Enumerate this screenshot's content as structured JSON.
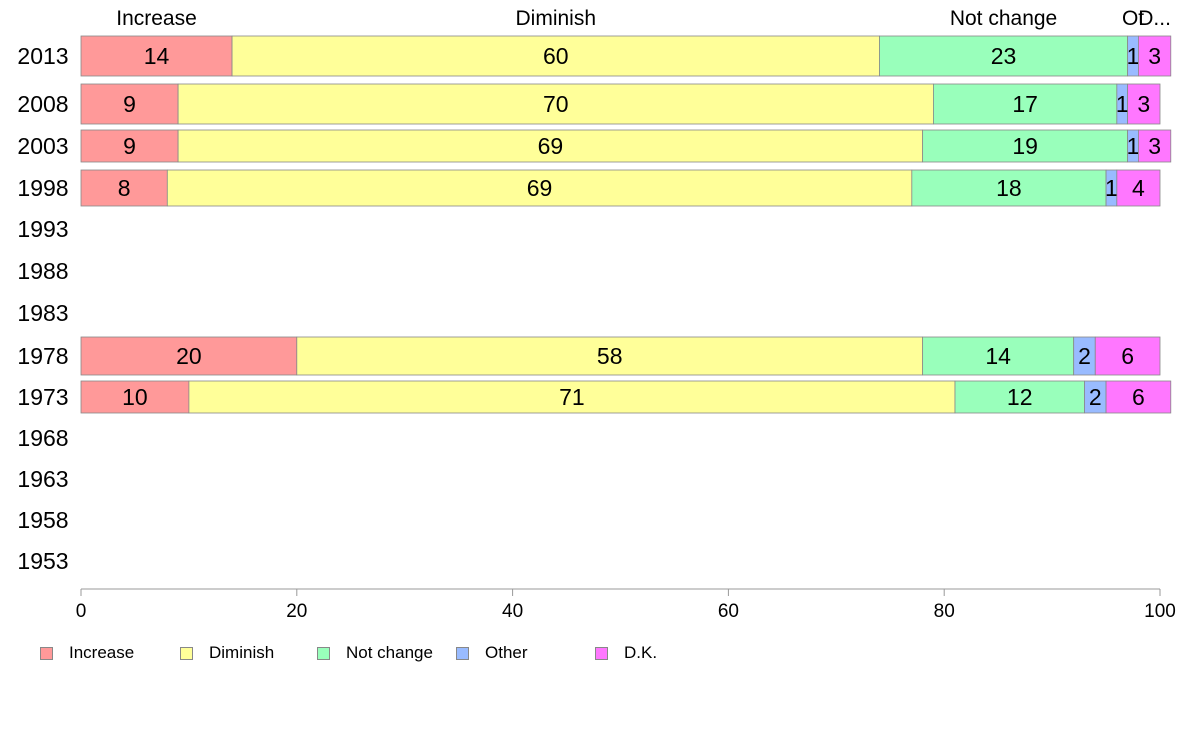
{
  "chart_data": {
    "type": "bar",
    "orientation": "horizontal",
    "stacked": true,
    "categories": [
      "2013",
      "2008",
      "2003",
      "1998",
      "1993",
      "1988",
      "1983",
      "1978",
      "1973",
      "1968",
      "1963",
      "1958",
      "1953"
    ],
    "series": [
      {
        "name": "Increase",
        "short_label": "Increase",
        "color": "#ff9999",
        "values": [
          14,
          9,
          9,
          8,
          null,
          null,
          null,
          20,
          10,
          null,
          null,
          null,
          null
        ]
      },
      {
        "name": "Diminish",
        "short_label": "Diminish",
        "color": "#ffff99",
        "values": [
          60,
          70,
          69,
          69,
          null,
          null,
          null,
          58,
          71,
          null,
          null,
          null,
          null
        ]
      },
      {
        "name": "Not change",
        "short_label": "Not change",
        "color": "#99ffbb",
        "values": [
          23,
          17,
          19,
          18,
          null,
          null,
          null,
          14,
          12,
          null,
          null,
          null,
          null
        ]
      },
      {
        "name": "Other",
        "short_label": "Ot",
        "color": "#99bbff",
        "values": [
          1,
          1,
          1,
          1,
          null,
          null,
          null,
          2,
          2,
          null,
          null,
          null,
          null
        ]
      },
      {
        "name": "D.K.",
        "short_label": "D...",
        "color": "#ff77ff",
        "values": [
          3,
          3,
          3,
          4,
          null,
          null,
          null,
          6,
          6,
          null,
          null,
          null,
          null
        ]
      }
    ],
    "xlim": [
      0,
      100
    ],
    "xticks": [
      "0",
      "20",
      "40",
      "60",
      "80",
      "100"
    ],
    "grid": false,
    "legend_position": "bottom-left"
  }
}
